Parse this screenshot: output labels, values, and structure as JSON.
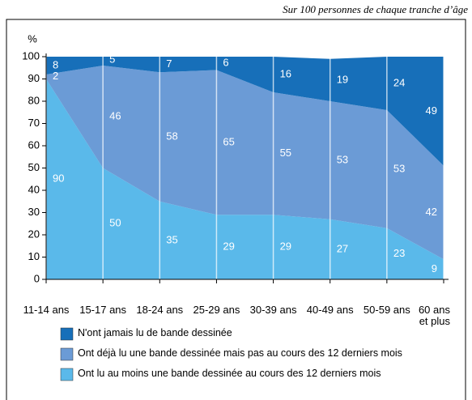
{
  "chart_data": {
    "type": "stacked_area",
    "subtitle": "Sur 100 personnes de chaque tranche d’âge",
    "ylabel": "%",
    "categories": [
      "11-14 ans",
      "15-17 ans",
      "18-24 ans",
      "25-29 ans",
      "30-39 ans",
      "40-49 ans",
      "50-59 ans",
      "60 ans et plus"
    ],
    "series": [
      {
        "name": "Ont lu au moins une bande dessinée au cours des 12 derniers mois",
        "color": "#5ab9ea",
        "values": [
          90,
          50,
          35,
          29,
          29,
          27,
          23,
          9
        ]
      },
      {
        "name": "Ont déjà lu une bande dessinée mais pas au cours des 12 derniers mois",
        "color": "#6b9bd6",
        "values": [
          2,
          46,
          58,
          65,
          55,
          53,
          53,
          42
        ]
      },
      {
        "name": "N'ont jamais lu de bande dessinée",
        "color": "#176fb9",
        "values": [
          8,
          5,
          7,
          6,
          16,
          19,
          24,
          49
        ]
      }
    ],
    "ylim": [
      0,
      100
    ],
    "yticks": [
      0,
      10,
      20,
      30,
      40,
      50,
      60,
      70,
      80,
      90,
      100
    ]
  }
}
